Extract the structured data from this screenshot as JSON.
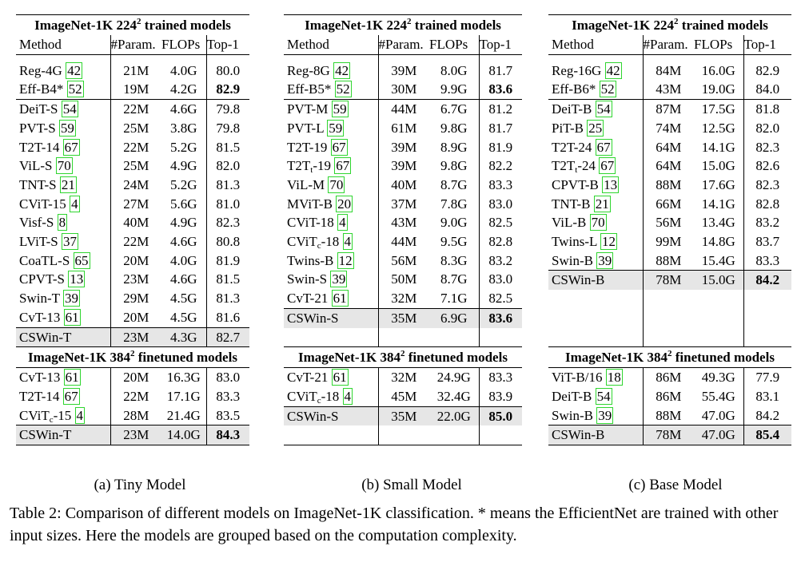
{
  "panels": [
    {
      "id": "tiny",
      "title_224": "ImageNet-1K 224",
      "title_224_suffix": " trained models",
      "sup": "2",
      "headers": {
        "method": "Method",
        "param": "#Param.",
        "flops": "FLOPs",
        "top1": "Top-1"
      },
      "rows_224": [
        {
          "name": "Reg-4G",
          "ref": "42",
          "param": "21M",
          "flops": "4.0G",
          "top1": "80.0",
          "bold": false,
          "group": 1
        },
        {
          "name": "Eff-B4*",
          "ref": "52",
          "param": "19M",
          "flops": "4.2G",
          "top1": "82.9",
          "bold": true,
          "group": 1
        },
        {
          "name": "DeiT-S",
          "ref": "54",
          "param": "22M",
          "flops": "4.6G",
          "top1": "79.8",
          "bold": false,
          "group": 2
        },
        {
          "name": "PVT-S",
          "ref": "59",
          "param": "25M",
          "flops": "3.8G",
          "top1": "79.8",
          "bold": false,
          "group": 2
        },
        {
          "name": "T2T-14",
          "ref": "67",
          "param": "22M",
          "flops": "5.2G",
          "top1": "81.5",
          "bold": false,
          "group": 2
        },
        {
          "name": "ViL-S",
          "ref": "70",
          "param": "25M",
          "flops": "4.9G",
          "top1": "82.0",
          "bold": false,
          "group": 2
        },
        {
          "name": "TNT-S",
          "ref": "21",
          "param": "24M",
          "flops": "5.2G",
          "top1": "81.3",
          "bold": false,
          "group": 2
        },
        {
          "name": "CViT-15",
          "ref": "4",
          "param": "27M",
          "flops": "5.6G",
          "top1": "81.0",
          "bold": false,
          "group": 2
        },
        {
          "name": "Visf-S",
          "ref": "8",
          "param": "40M",
          "flops": "4.9G",
          "top1": "82.3",
          "bold": false,
          "group": 2
        },
        {
          "name": "LViT-S",
          "ref": "37",
          "param": "22M",
          "flops": "4.6G",
          "top1": "80.8",
          "bold": false,
          "group": 2
        },
        {
          "name": "CoaTL-S",
          "ref": "65",
          "param": "20M",
          "flops": "4.0G",
          "top1": "81.9",
          "bold": false,
          "group": 2
        },
        {
          "name": "CPVT-S",
          "ref": "13",
          "param": "23M",
          "flops": "4.6G",
          "top1": "81.5",
          "bold": false,
          "group": 2
        },
        {
          "name": "Swin-T",
          "ref": "39",
          "param": "29M",
          "flops": "4.5G",
          "top1": "81.3",
          "bold": false,
          "group": 2
        },
        {
          "name": "CvT-13",
          "ref": "61",
          "param": "20M",
          "flops": "4.5G",
          "top1": "81.6",
          "bold": false,
          "group": 2
        },
        {
          "name": "CSWin-T",
          "ref": "",
          "param": "23M",
          "flops": "4.3G",
          "top1": "82.7",
          "bold": false,
          "group": 3,
          "highlight": true
        }
      ],
      "title_384": "ImageNet-1K 384",
      "title_384_suffix": " finetuned models",
      "rows_384": [
        {
          "name": "CvT-13",
          "ref": "61",
          "param": "20M",
          "flops": "16.3G",
          "top1": "83.0",
          "bold": false
        },
        {
          "name": "T2T-14",
          "ref": "67",
          "param": "22M",
          "flops": "17.1G",
          "top1": "83.3",
          "bold": false
        },
        {
          "name": "CViT",
          "sub": "c",
          "name_suffix": "-15",
          "ref": "4",
          "param": "28M",
          "flops": "21.4G",
          "top1": "83.5",
          "bold": false
        },
        {
          "name": "CSWin-T",
          "ref": "",
          "param": "23M",
          "flops": "14.0G",
          "top1": "84.3",
          "bold": true,
          "highlight": true
        }
      ],
      "caption": "(a) Tiny Model"
    },
    {
      "id": "small",
      "title_224": "ImageNet-1K 224",
      "title_224_suffix": " trained models",
      "sup": "2",
      "headers": {
        "method": "Method",
        "param": "#Param.",
        "flops": "FLOPs",
        "top1": "Top-1"
      },
      "rows_224": [
        {
          "name": "Reg-8G",
          "ref": "42",
          "param": "39M",
          "flops": "8.0G",
          "top1": "81.7",
          "bold": false,
          "group": 1
        },
        {
          "name": "Eff-B5*",
          "ref": "52",
          "param": "30M",
          "flops": "9.9G",
          "top1": "83.6",
          "bold": true,
          "group": 1
        },
        {
          "name": "PVT-M",
          "ref": "59",
          "param": "44M",
          "flops": "6.7G",
          "top1": "81.2",
          "bold": false,
          "group": 2
        },
        {
          "name": "PVT-L",
          "ref": "59",
          "param": "61M",
          "flops": "9.8G",
          "top1": "81.7",
          "bold": false,
          "group": 2
        },
        {
          "name": "T2T-19",
          "ref": "67",
          "param": "39M",
          "flops": "8.9G",
          "top1": "81.9",
          "bold": false,
          "group": 2
        },
        {
          "name": "T2T",
          "sub": "t",
          "name_suffix": "-19",
          "ref": "67",
          "param": "39M",
          "flops": "9.8G",
          "top1": "82.2",
          "bold": false,
          "group": 2
        },
        {
          "name": "ViL-M",
          "ref": "70",
          "param": "40M",
          "flops": "8.7G",
          "top1": "83.3",
          "bold": false,
          "group": 2
        },
        {
          "name": "MViT-B",
          "ref": "20",
          "param": "37M",
          "flops": "7.8G",
          "top1": "83.0",
          "bold": false,
          "group": 2
        },
        {
          "name": "CViT-18",
          "ref": "4",
          "param": "43M",
          "flops": "9.0G",
          "top1": "82.5",
          "bold": false,
          "group": 2
        },
        {
          "name": "CViT",
          "sub": "c",
          "name_suffix": "-18",
          "ref": "4",
          "param": "44M",
          "flops": "9.5G",
          "top1": "82.8",
          "bold": false,
          "group": 2
        },
        {
          "name": "Twins-B",
          "ref": "12",
          "param": "56M",
          "flops": "8.3G",
          "top1": "83.2",
          "bold": false,
          "group": 2
        },
        {
          "name": "Swin-S",
          "ref": "39",
          "param": "50M",
          "flops": "8.7G",
          "top1": "83.0",
          "bold": false,
          "group": 2
        },
        {
          "name": "CvT-21",
          "ref": "61",
          "param": "32M",
          "flops": "7.1G",
          "top1": "82.5",
          "bold": false,
          "group": 2
        },
        {
          "name": "CSWin-S",
          "ref": "",
          "param": "35M",
          "flops": "6.9G",
          "top1": "83.6",
          "bold": true,
          "group": 3,
          "highlight": true
        }
      ],
      "title_384": "ImageNet-1K 384",
      "title_384_suffix": " finetuned models",
      "rows_384": [
        {
          "name": "CvT-21",
          "ref": "61",
          "param": "32M",
          "flops": "24.9G",
          "top1": "83.3",
          "bold": false
        },
        {
          "name": "CViT",
          "sub": "c",
          "name_suffix": "-18",
          "ref": "4",
          "param": "45M",
          "flops": "32.4G",
          "top1": "83.9",
          "bold": false
        },
        {
          "name": "CSWin-S",
          "ref": "",
          "param": "35M",
          "flops": "22.0G",
          "top1": "85.0",
          "bold": true,
          "highlight": true
        }
      ],
      "caption": "(b) Small Model"
    },
    {
      "id": "base",
      "title_224": "ImageNet-1K 224",
      "title_224_suffix": " trained models",
      "sup": "2",
      "headers": {
        "method": "Method",
        "param": "#Param.",
        "flops": "FLOPs",
        "top1": "Top-1"
      },
      "rows_224": [
        {
          "name": "Reg-16G",
          "ref": "42",
          "param": "84M",
          "flops": "16.0G",
          "top1": "82.9",
          "bold": false,
          "group": 1
        },
        {
          "name": "Eff-B6*",
          "ref": "52",
          "param": "43M",
          "flops": "19.0G",
          "top1": "84.0",
          "bold": false,
          "group": 1
        },
        {
          "name": "DeiT-B",
          "ref": "54",
          "param": "87M",
          "flops": "17.5G",
          "top1": "81.8",
          "bold": false,
          "group": 2
        },
        {
          "name": "PiT-B",
          "ref": "25",
          "param": "74M",
          "flops": "12.5G",
          "top1": "82.0",
          "bold": false,
          "group": 2
        },
        {
          "name": "T2T-24",
          "ref": "67",
          "param": "64M",
          "flops": "14.1G",
          "top1": "82.3",
          "bold": false,
          "group": 2
        },
        {
          "name": "T2T",
          "sub": "t",
          "name_suffix": "-24",
          "ref": "67",
          "param": "64M",
          "flops": "15.0G",
          "top1": "82.6",
          "bold": false,
          "group": 2
        },
        {
          "name": "CPVT-B",
          "ref": "13",
          "param": "88M",
          "flops": "17.6G",
          "top1": "82.3",
          "bold": false,
          "group": 2
        },
        {
          "name": "TNT-B",
          "ref": "21",
          "param": "66M",
          "flops": "14.1G",
          "top1": "82.8",
          "bold": false,
          "group": 2
        },
        {
          "name": "ViL-B",
          "ref": "70",
          "param": "56M",
          "flops": "13.4G",
          "top1": "83.2",
          "bold": false,
          "group": 2
        },
        {
          "name": "Twins-L",
          "ref": "12",
          "param": "99M",
          "flops": "14.8G",
          "top1": "83.7",
          "bold": false,
          "group": 2
        },
        {
          "name": "Swin-B",
          "ref": "39",
          "param": "88M",
          "flops": "15.4G",
          "top1": "83.3",
          "bold": false,
          "group": 2
        },
        {
          "name": "CSWin-B",
          "ref": "",
          "param": "78M",
          "flops": "15.0G",
          "top1": "84.2",
          "bold": true,
          "group": 3,
          "highlight": true
        }
      ],
      "title_384": "ImageNet-1K 384",
      "title_384_suffix": " finetuned models",
      "rows_384": [
        {
          "name": "ViT-B/16",
          "ref": "18",
          "param": "86M",
          "flops": "49.3G",
          "top1": "77.9",
          "bold": false
        },
        {
          "name": "DeiT-B",
          "ref": "54",
          "param": "86M",
          "flops": "55.4G",
          "top1": "83.1",
          "bold": false
        },
        {
          "name": "Swin-B",
          "ref": "39",
          "param": "88M",
          "flops": "47.0G",
          "top1": "84.2",
          "bold": false
        },
        {
          "name": "CSWin-B",
          "ref": "",
          "param": "78M",
          "flops": "47.0G",
          "top1": "85.4",
          "bold": true,
          "highlight": true
        }
      ],
      "caption": "(c) Base Model"
    }
  ],
  "table_caption": "Table 2: Comparison of different models on ImageNet-1K classification. * means the EfficientNet are trained with other input sizes. Here the models are grouped based on the computation complexity."
}
